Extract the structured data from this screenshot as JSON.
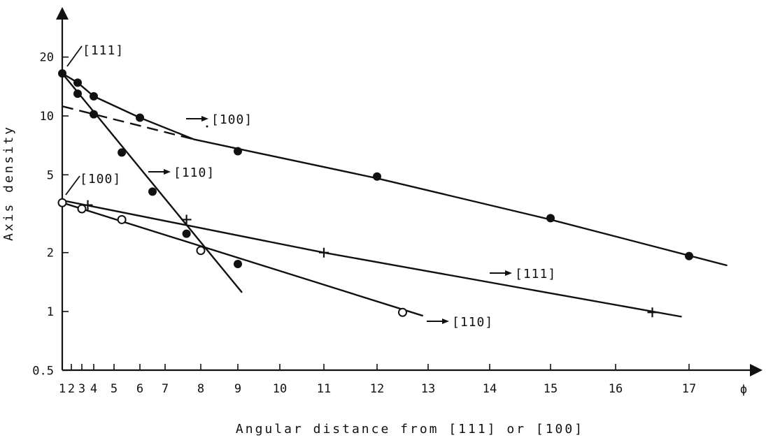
{
  "chart_data": {
    "type": "scatter",
    "title": "",
    "xlabel": "Angular distance  from  [111] or [100]",
    "ylabel": "Axis  density",
    "x_scale": "non-uniform",
    "y_scale": "log",
    "xlim": [
      1,
      17.7
    ],
    "ylim": [
      0.5,
      32
    ],
    "grid": false,
    "x_ticks": [
      "1",
      "2",
      "3",
      "4",
      "5",
      "6",
      "7",
      "8",
      "9",
      "10",
      "11",
      "12",
      "13",
      "14",
      "15",
      "16",
      "17"
    ],
    "x_end_label": "ϕ",
    "y_ticks": [
      {
        "label": "0.5",
        "value": 0.5
      },
      {
        "label": "1",
        "value": 1
      },
      {
        "label": "2",
        "value": 2
      },
      {
        "label": "5",
        "value": 5
      },
      {
        "label": "10",
        "value": 10
      },
      {
        "label": "20",
        "value": 20
      }
    ],
    "series": [
      {
        "marker": "filled-circle",
        "points": [
          [
            1,
            16.5
          ],
          [
            2.6,
            14.8
          ],
          [
            4,
            12.6
          ],
          [
            6,
            9.8
          ],
          [
            9,
            6.6
          ],
          [
            12,
            4.9
          ],
          [
            15,
            3.0
          ],
          [
            17,
            1.92
          ]
        ],
        "line": [
          [
            1,
            16.5
          ],
          [
            2.6,
            14.8
          ],
          [
            4,
            12.6
          ],
          [
            6,
            9.8
          ],
          [
            7.8,
            7.6
          ],
          [
            9,
            6.8
          ],
          [
            12,
            4.8
          ],
          [
            15,
            2.95
          ],
          [
            17.7,
            1.72
          ]
        ],
        "end_label": "[111]"
      },
      {
        "marker": "filled-circle",
        "points": [
          [
            2.6,
            13
          ],
          [
            4,
            10.2
          ],
          [
            5.3,
            6.5
          ],
          [
            6.5,
            4.1
          ],
          [
            7.6,
            2.5
          ],
          [
            9,
            1.75
          ]
        ],
        "line": [
          [
            1,
            16.5
          ],
          [
            9.1,
            1.25
          ]
        ],
        "end_label": "[110]"
      },
      {
        "marker": "dashed-line",
        "points": [],
        "line": [
          [
            1,
            11.2
          ],
          [
            7.8,
            7.6
          ]
        ],
        "end_label": "[100]"
      },
      {
        "marker": "plus",
        "points": [
          [
            3.5,
            3.5
          ],
          [
            7.6,
            2.95
          ],
          [
            11,
            2.0
          ],
          [
            16.5,
            0.99
          ]
        ],
        "line": [
          [
            1,
            3.7
          ],
          [
            11,
            2.0
          ],
          [
            16.9,
            0.94
          ]
        ],
        "end_label": "[111]"
      },
      {
        "marker": "open-circle",
        "points": [
          [
            1,
            3.6
          ],
          [
            3,
            3.35
          ],
          [
            5.3,
            2.95
          ],
          [
            8,
            2.05
          ],
          [
            12.5,
            0.99
          ]
        ],
        "line": [
          [
            1,
            3.6
          ],
          [
            12.9,
            0.95
          ]
        ],
        "end_label": "[110]"
      }
    ],
    "annotations": [
      "[111]",
      "[100]"
    ]
  }
}
